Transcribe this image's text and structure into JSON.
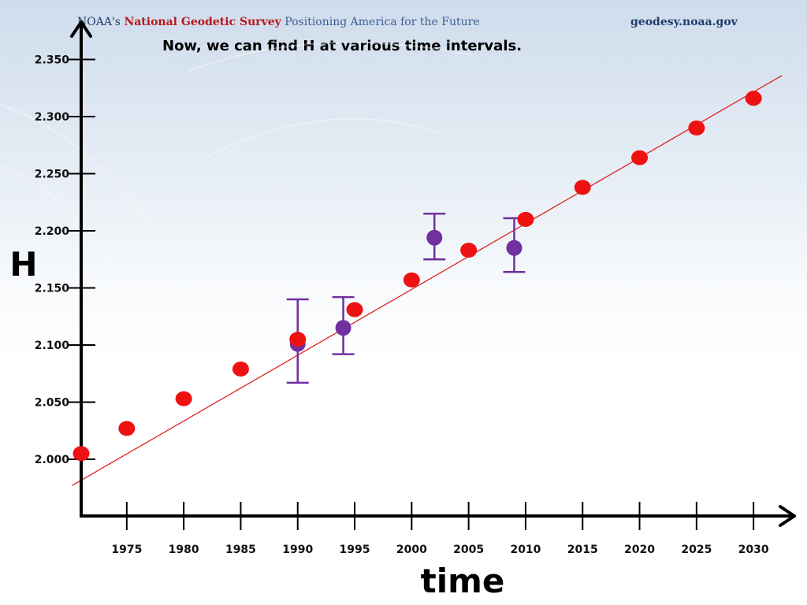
{
  "header": {
    "logo_prefix": "NOAA's ",
    "logo_org": "National Geodetic Survey",
    "logo_tagline": " Positioning America for the Future",
    "url": "geodesy.noaa.gov"
  },
  "slide": {
    "title": "Now, we can find H at various time intervals."
  },
  "colors": {
    "prediction": "#ee1111",
    "observation": "#7030a0",
    "axis": "#000000",
    "trend_line": "#dd2222"
  },
  "chart_data": {
    "type": "scatter",
    "title": "",
    "xlabel": "time",
    "ylabel": "H",
    "xlim": [
      1971,
      2032
    ],
    "ylim": [
      1.95,
      2.36
    ],
    "x_ticks": [
      1975,
      1980,
      1985,
      1990,
      1995,
      2000,
      2005,
      2010,
      2015,
      2020,
      2025,
      2030
    ],
    "x_tick_labels": [
      "1975",
      "1980",
      "1985",
      "1990",
      "1995",
      "2000",
      "2005",
      "2010",
      "2015",
      "2020",
      "2025",
      "2030"
    ],
    "y_ticks": [
      2.0,
      2.05,
      2.1,
      2.15,
      2.2,
      2.25,
      2.3,
      2.35
    ],
    "y_tick_labels": [
      "2.000",
      "2.050",
      "2.100",
      "2.150",
      "2.200",
      "2.250",
      "2.300",
      "2.350"
    ],
    "grid": false,
    "trend_line": {
      "from": {
        "x": 1970.2,
        "y": 1.977
      },
      "to": {
        "x": 2032.5,
        "y": 2.336
      }
    },
    "series": [
      {
        "kind": "prediction",
        "points": [
          {
            "x": 1971,
            "y": 2.005
          },
          {
            "x": 1975,
            "y": 2.027
          },
          {
            "x": 1980,
            "y": 2.053
          },
          {
            "x": 1985,
            "y": 2.079
          },
          {
            "x": 1990,
            "y": 2.105
          },
          {
            "x": 1995,
            "y": 2.131
          },
          {
            "x": 2000,
            "y": 2.157
          },
          {
            "x": 2005,
            "y": 2.183
          },
          {
            "x": 2010,
            "y": 2.21
          },
          {
            "x": 2015,
            "y": 2.238
          },
          {
            "x": 2020,
            "y": 2.264
          },
          {
            "x": 2025,
            "y": 2.29
          },
          {
            "x": 2030,
            "y": 2.316
          }
        ]
      },
      {
        "kind": "observation",
        "points": [
          {
            "x": 1990,
            "y": 2.101,
            "err_low": 2.067,
            "err_high": 2.14
          },
          {
            "x": 1994,
            "y": 2.115,
            "err_low": 2.092,
            "err_high": 2.142
          },
          {
            "x": 2002,
            "y": 2.194,
            "err_low": 2.175,
            "err_high": 2.215
          },
          {
            "x": 2009,
            "y": 2.185,
            "err_low": 2.164,
            "err_high": 2.211
          }
        ]
      }
    ]
  }
}
